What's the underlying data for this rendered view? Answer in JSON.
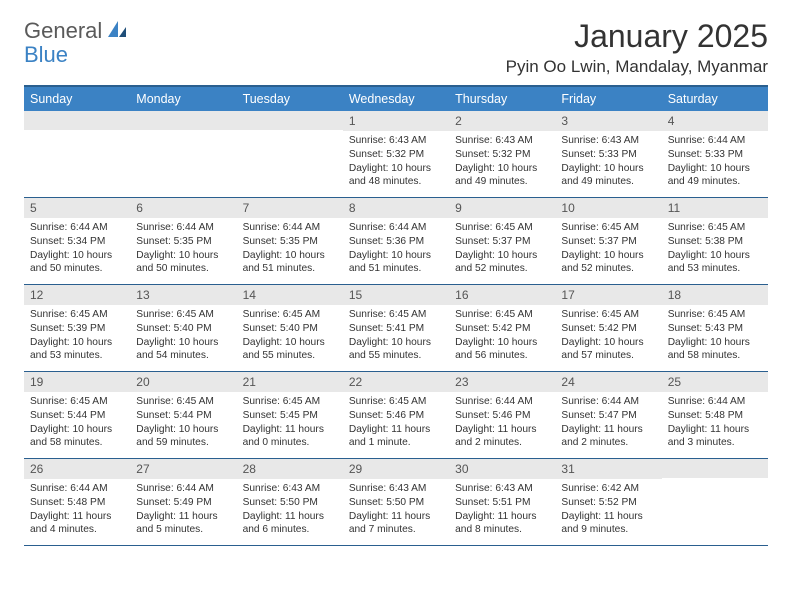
{
  "logo": {
    "part1": "General",
    "part2": "Blue"
  },
  "title": "January 2025",
  "location": "Pyin Oo Lwin, Mandalay, Myanmar",
  "colors": {
    "header_bg": "#3b82c4",
    "header_border": "#2a5f8f",
    "daynum_bg": "#e8e8e8",
    "text": "#333333"
  },
  "day_names": [
    "Sunday",
    "Monday",
    "Tuesday",
    "Wednesday",
    "Thursday",
    "Friday",
    "Saturday"
  ],
  "weeks": [
    [
      {
        "num": "",
        "sunrise": "",
        "sunset": "",
        "daylight": ""
      },
      {
        "num": "",
        "sunrise": "",
        "sunset": "",
        "daylight": ""
      },
      {
        "num": "",
        "sunrise": "",
        "sunset": "",
        "daylight": ""
      },
      {
        "num": "1",
        "sunrise": "Sunrise: 6:43 AM",
        "sunset": "Sunset: 5:32 PM",
        "daylight": "Daylight: 10 hours and 48 minutes."
      },
      {
        "num": "2",
        "sunrise": "Sunrise: 6:43 AM",
        "sunset": "Sunset: 5:32 PM",
        "daylight": "Daylight: 10 hours and 49 minutes."
      },
      {
        "num": "3",
        "sunrise": "Sunrise: 6:43 AM",
        "sunset": "Sunset: 5:33 PM",
        "daylight": "Daylight: 10 hours and 49 minutes."
      },
      {
        "num": "4",
        "sunrise": "Sunrise: 6:44 AM",
        "sunset": "Sunset: 5:33 PM",
        "daylight": "Daylight: 10 hours and 49 minutes."
      }
    ],
    [
      {
        "num": "5",
        "sunrise": "Sunrise: 6:44 AM",
        "sunset": "Sunset: 5:34 PM",
        "daylight": "Daylight: 10 hours and 50 minutes."
      },
      {
        "num": "6",
        "sunrise": "Sunrise: 6:44 AM",
        "sunset": "Sunset: 5:35 PM",
        "daylight": "Daylight: 10 hours and 50 minutes."
      },
      {
        "num": "7",
        "sunrise": "Sunrise: 6:44 AM",
        "sunset": "Sunset: 5:35 PM",
        "daylight": "Daylight: 10 hours and 51 minutes."
      },
      {
        "num": "8",
        "sunrise": "Sunrise: 6:44 AM",
        "sunset": "Sunset: 5:36 PM",
        "daylight": "Daylight: 10 hours and 51 minutes."
      },
      {
        "num": "9",
        "sunrise": "Sunrise: 6:45 AM",
        "sunset": "Sunset: 5:37 PM",
        "daylight": "Daylight: 10 hours and 52 minutes."
      },
      {
        "num": "10",
        "sunrise": "Sunrise: 6:45 AM",
        "sunset": "Sunset: 5:37 PM",
        "daylight": "Daylight: 10 hours and 52 minutes."
      },
      {
        "num": "11",
        "sunrise": "Sunrise: 6:45 AM",
        "sunset": "Sunset: 5:38 PM",
        "daylight": "Daylight: 10 hours and 53 minutes."
      }
    ],
    [
      {
        "num": "12",
        "sunrise": "Sunrise: 6:45 AM",
        "sunset": "Sunset: 5:39 PM",
        "daylight": "Daylight: 10 hours and 53 minutes."
      },
      {
        "num": "13",
        "sunrise": "Sunrise: 6:45 AM",
        "sunset": "Sunset: 5:40 PM",
        "daylight": "Daylight: 10 hours and 54 minutes."
      },
      {
        "num": "14",
        "sunrise": "Sunrise: 6:45 AM",
        "sunset": "Sunset: 5:40 PM",
        "daylight": "Daylight: 10 hours and 55 minutes."
      },
      {
        "num": "15",
        "sunrise": "Sunrise: 6:45 AM",
        "sunset": "Sunset: 5:41 PM",
        "daylight": "Daylight: 10 hours and 55 minutes."
      },
      {
        "num": "16",
        "sunrise": "Sunrise: 6:45 AM",
        "sunset": "Sunset: 5:42 PM",
        "daylight": "Daylight: 10 hours and 56 minutes."
      },
      {
        "num": "17",
        "sunrise": "Sunrise: 6:45 AM",
        "sunset": "Sunset: 5:42 PM",
        "daylight": "Daylight: 10 hours and 57 minutes."
      },
      {
        "num": "18",
        "sunrise": "Sunrise: 6:45 AM",
        "sunset": "Sunset: 5:43 PM",
        "daylight": "Daylight: 10 hours and 58 minutes."
      }
    ],
    [
      {
        "num": "19",
        "sunrise": "Sunrise: 6:45 AM",
        "sunset": "Sunset: 5:44 PM",
        "daylight": "Daylight: 10 hours and 58 minutes."
      },
      {
        "num": "20",
        "sunrise": "Sunrise: 6:45 AM",
        "sunset": "Sunset: 5:44 PM",
        "daylight": "Daylight: 10 hours and 59 minutes."
      },
      {
        "num": "21",
        "sunrise": "Sunrise: 6:45 AM",
        "sunset": "Sunset: 5:45 PM",
        "daylight": "Daylight: 11 hours and 0 minutes."
      },
      {
        "num": "22",
        "sunrise": "Sunrise: 6:45 AM",
        "sunset": "Sunset: 5:46 PM",
        "daylight": "Daylight: 11 hours and 1 minute."
      },
      {
        "num": "23",
        "sunrise": "Sunrise: 6:44 AM",
        "sunset": "Sunset: 5:46 PM",
        "daylight": "Daylight: 11 hours and 2 minutes."
      },
      {
        "num": "24",
        "sunrise": "Sunrise: 6:44 AM",
        "sunset": "Sunset: 5:47 PM",
        "daylight": "Daylight: 11 hours and 2 minutes."
      },
      {
        "num": "25",
        "sunrise": "Sunrise: 6:44 AM",
        "sunset": "Sunset: 5:48 PM",
        "daylight": "Daylight: 11 hours and 3 minutes."
      }
    ],
    [
      {
        "num": "26",
        "sunrise": "Sunrise: 6:44 AM",
        "sunset": "Sunset: 5:48 PM",
        "daylight": "Daylight: 11 hours and 4 minutes."
      },
      {
        "num": "27",
        "sunrise": "Sunrise: 6:44 AM",
        "sunset": "Sunset: 5:49 PM",
        "daylight": "Daylight: 11 hours and 5 minutes."
      },
      {
        "num": "28",
        "sunrise": "Sunrise: 6:43 AM",
        "sunset": "Sunset: 5:50 PM",
        "daylight": "Daylight: 11 hours and 6 minutes."
      },
      {
        "num": "29",
        "sunrise": "Sunrise: 6:43 AM",
        "sunset": "Sunset: 5:50 PM",
        "daylight": "Daylight: 11 hours and 7 minutes."
      },
      {
        "num": "30",
        "sunrise": "Sunrise: 6:43 AM",
        "sunset": "Sunset: 5:51 PM",
        "daylight": "Daylight: 11 hours and 8 minutes."
      },
      {
        "num": "31",
        "sunrise": "Sunrise: 6:42 AM",
        "sunset": "Sunset: 5:52 PM",
        "daylight": "Daylight: 11 hours and 9 minutes."
      },
      {
        "num": "",
        "sunrise": "",
        "sunset": "",
        "daylight": ""
      }
    ]
  ]
}
